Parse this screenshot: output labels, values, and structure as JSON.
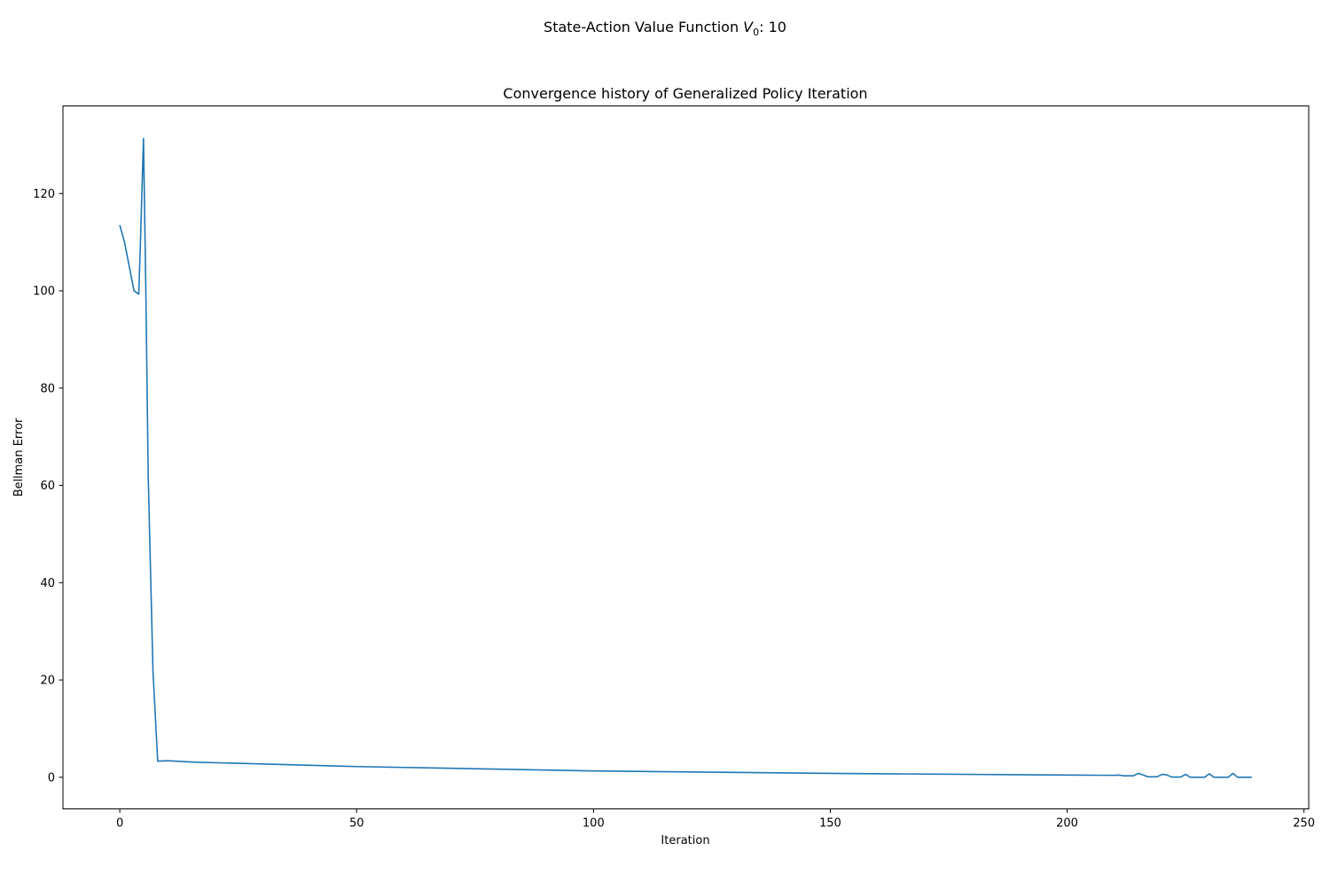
{
  "figure": {
    "suptitle_prefix": "State-Action Value Function ",
    "suptitle_symbol": "V",
    "suptitle_subscript": "0",
    "suptitle_suffix": ": 10"
  },
  "chart_data": {
    "type": "line",
    "title": "Convergence history of Generalized Policy Iteration",
    "xlabel": "Iteration",
    "ylabel": "Bellman Error",
    "xlim": [
      -12,
      251
    ],
    "ylim": [
      -6.5,
      138
    ],
    "xticks": [
      0,
      50,
      100,
      150,
      200,
      250
    ],
    "yticks": [
      0,
      20,
      40,
      60,
      80,
      100,
      120
    ],
    "grid": false,
    "line_color": "#1f77b4",
    "series": [
      {
        "x": [
          0,
          1,
          2,
          3,
          4,
          4.3,
          5,
          5.5,
          6,
          7,
          8,
          10,
          12,
          14,
          16,
          50,
          100,
          150,
          200,
          210,
          211,
          212,
          213,
          214,
          215,
          216,
          217,
          218,
          219,
          220,
          221,
          222,
          223,
          224,
          225,
          226,
          227,
          228,
          229,
          230,
          231,
          232,
          233,
          234,
          235,
          236,
          237,
          238,
          239
        ],
        "y": [
          113.5,
          110,
          105,
          100,
          99.3,
          108,
          131.3,
          100,
          62,
          22,
          3.3,
          3.4,
          3.3,
          3.2,
          3.1,
          2.2,
          1.3,
          0.8,
          0.45,
          0.4,
          0.45,
          0.3,
          0.3,
          0.3,
          0.8,
          0.5,
          0.1,
          0.1,
          0.1,
          0.6,
          0.5,
          0.05,
          0.05,
          0.05,
          0.6,
          0.0,
          0.0,
          0.0,
          0.0,
          0.7,
          0.0,
          0.0,
          0.0,
          0.0,
          0.8,
          0.0,
          0.0,
          0.0,
          0.0
        ]
      }
    ]
  }
}
